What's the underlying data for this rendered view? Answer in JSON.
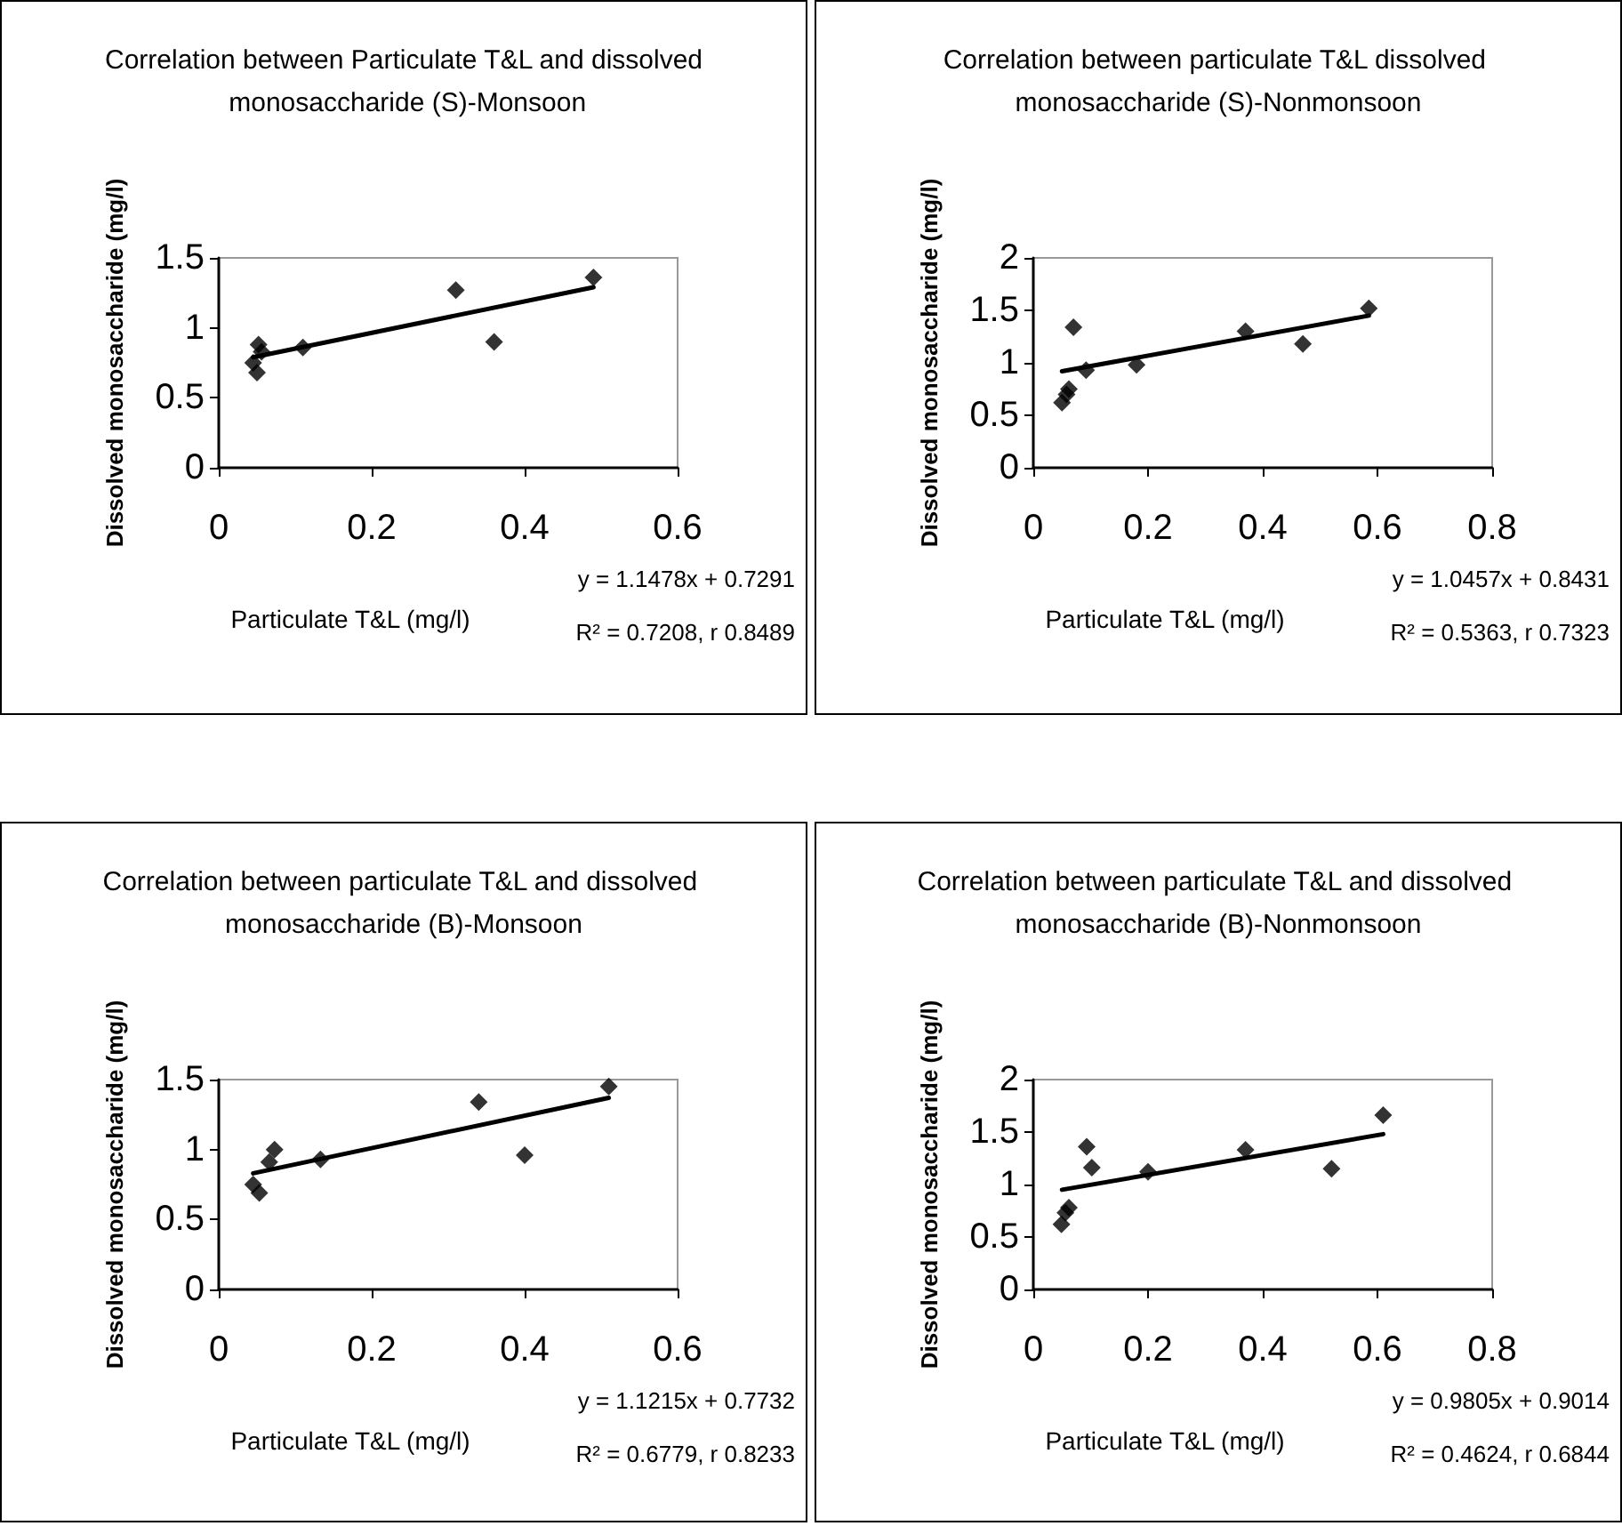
{
  "chart_data": [
    {
      "type": "scatter",
      "title": "Correlation between Particulate T&L and dissolved monosaccharide (S)-Monsoon",
      "xlabel": "Particulate T&L (mg/l)",
      "ylabel": "Dissolved monosaccharide (mg/l)",
      "marker": "diamond",
      "grid": false,
      "xlim": [
        0,
        0.6
      ],
      "xticks": [
        0,
        0.2,
        0.4,
        0.6
      ],
      "ylim": [
        0,
        1.5
      ],
      "yticks": [
        0,
        0.5,
        1,
        1.5
      ],
      "annotations": [
        "y = 1.1478x + 0.7291",
        "R² = 0.7208, r 0.8489"
      ],
      "series": [
        {
          "color": "#000000",
          "x": [
            0.045,
            0.05,
            0.052,
            0.056,
            0.11,
            0.31,
            0.36,
            0.49
          ],
          "values": [
            0.75,
            0.68,
            0.88,
            0.83,
            0.86,
            1.27,
            0.9,
            1.36
          ]
        },
        {
          "type": "line",
          "marker": "none",
          "color": "#000000",
          "x": [
            0.045,
            0.49
          ],
          "values": [
            0.79,
            1.29
          ]
        }
      ]
    },
    {
      "type": "scatter",
      "title": "Correlation between particulate T&L dissolved monosaccharide (S)-Nonmonsoon",
      "xlabel": "Particulate T&L (mg/l)",
      "ylabel": "Dissolved monosaccharide (mg/l)",
      "marker": "diamond",
      "grid": false,
      "xlim": [
        0,
        0.8
      ],
      "xticks": [
        0,
        0.2,
        0.4,
        0.6,
        0.8
      ],
      "ylim": [
        0,
        2
      ],
      "yticks": [
        0,
        0.5,
        1,
        1.5,
        2
      ],
      "annotations": [
        "y = 1.0457x + 0.8431",
        "R² = 0.5363, r 0.7323"
      ],
      "series": [
        {
          "color": "#000000",
          "x": [
            0.05,
            0.058,
            0.062,
            0.07,
            0.092,
            0.18,
            0.37,
            0.47,
            0.585
          ],
          "values": [
            0.62,
            0.7,
            0.75,
            1.34,
            0.93,
            0.98,
            1.3,
            1.18,
            1.52
          ]
        },
        {
          "type": "line",
          "marker": "none",
          "color": "#000000",
          "x": [
            0.05,
            0.585
          ],
          "values": [
            0.92,
            1.45
          ]
        }
      ]
    },
    {
      "type": "scatter",
      "title": "Correlation between particulate T&L and dissolved monosaccharide (B)-Monsoon",
      "xlabel": "Particulate T&L (mg/l)",
      "ylabel": "Dissolved monosaccharide (mg/l)",
      "marker": "diamond",
      "grid": false,
      "xlim": [
        0,
        0.6
      ],
      "xticks": [
        0,
        0.2,
        0.4,
        0.6
      ],
      "ylim": [
        0,
        1.5
      ],
      "yticks": [
        0,
        0.5,
        1,
        1.5
      ],
      "annotations": [
        "y = 1.1215x + 0.7732",
        "R² = 0.6779, r 0.8233"
      ],
      "series": [
        {
          "color": "#000000",
          "x": [
            0.045,
            0.053,
            0.066,
            0.073,
            0.133,
            0.34,
            0.4,
            0.51
          ],
          "values": [
            0.75,
            0.69,
            0.91,
            1.0,
            0.93,
            1.34,
            0.96,
            1.45
          ]
        },
        {
          "type": "line",
          "marker": "none",
          "color": "#000000",
          "x": [
            0.045,
            0.51
          ],
          "values": [
            0.83,
            1.37
          ]
        }
      ]
    },
    {
      "type": "scatter",
      "title": "Correlation between particulate T&L and dissolved monosaccharide (B)-Nonmonsoon",
      "xlabel": "Particulate T&L (mg/l)",
      "ylabel": "Dissolved monosaccharide (mg/l)",
      "marker": "diamond",
      "grid": false,
      "xlim": [
        0,
        0.8
      ],
      "xticks": [
        0,
        0.2,
        0.4,
        0.6,
        0.8
      ],
      "ylim": [
        0,
        2
      ],
      "yticks": [
        0,
        0.5,
        1,
        1.5,
        2
      ],
      "annotations": [
        "y = 0.9805x + 0.9014",
        "R² = 0.4624, r 0.6844"
      ],
      "series": [
        {
          "color": "#000000",
          "x": [
            0.049,
            0.056,
            0.062,
            0.093,
            0.102,
            0.2,
            0.37,
            0.52,
            0.61
          ],
          "values": [
            0.62,
            0.73,
            0.78,
            1.36,
            1.16,
            1.12,
            1.33,
            1.15,
            1.66
          ]
        },
        {
          "type": "line",
          "marker": "none",
          "color": "#000000",
          "x": [
            0.05,
            0.61
          ],
          "values": [
            0.95,
            1.48
          ]
        }
      ]
    }
  ]
}
